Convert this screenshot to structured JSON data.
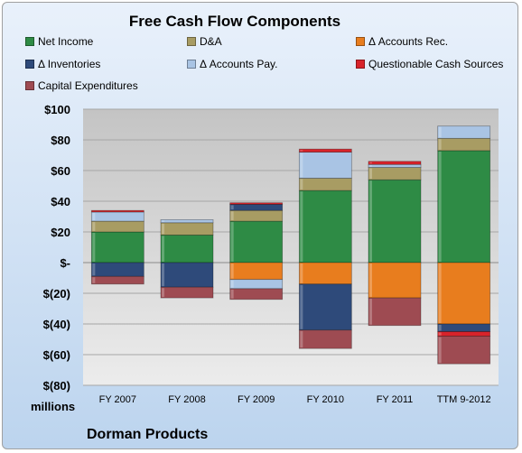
{
  "chart_data": {
    "type": "bar",
    "stacked": true,
    "title": "Free Cash Flow Components",
    "categories": [
      "FY 2007",
      "FY 2008",
      "FY 2009",
      "FY 2010",
      "FY 2011",
      "TTM 9-2012"
    ],
    "series": [
      {
        "name": "Net Income",
        "color": "#2e8b45",
        "values": [
          20,
          18,
          27,
          47,
          54,
          73
        ]
      },
      {
        "name": "D&A",
        "color": "#a89c63",
        "values": [
          7,
          8,
          7,
          8,
          8,
          8
        ]
      },
      {
        "name": "Δ Accounts Rec.",
        "color": "#e87d1e",
        "values": [
          0,
          0,
          -11,
          -14,
          -23,
          -40
        ]
      },
      {
        "name": "Δ Inventories",
        "color": "#2e4a7a",
        "values": [
          -9,
          -16,
          4,
          -30,
          0,
          -5
        ]
      },
      {
        "name": "Δ Accounts Pay.",
        "color": "#a9c4e4",
        "values": [
          6,
          2,
          -6,
          17,
          2,
          8
        ]
      },
      {
        "name": "Questionable Cash Sources",
        "color": "#d8232a",
        "values": [
          1,
          0,
          1,
          2,
          2,
          -3
        ]
      },
      {
        "name": "Capital Expenditures",
        "color": "#9e4b52",
        "values": [
          -5,
          -7,
          -7,
          -12,
          -18,
          -18
        ]
      }
    ],
    "yticks": [
      "$100",
      "$80",
      "$60",
      "$40",
      "$20",
      "$-",
      "$(20)",
      "$(40)",
      "$(60)",
      "$(80)"
    ],
    "ylim": [
      -80,
      100
    ],
    "ylabel": "",
    "xlabel": "",
    "units_label": "millions",
    "legend_position": "top",
    "grid": true
  },
  "footer": {
    "company": "Dorman Products"
  }
}
